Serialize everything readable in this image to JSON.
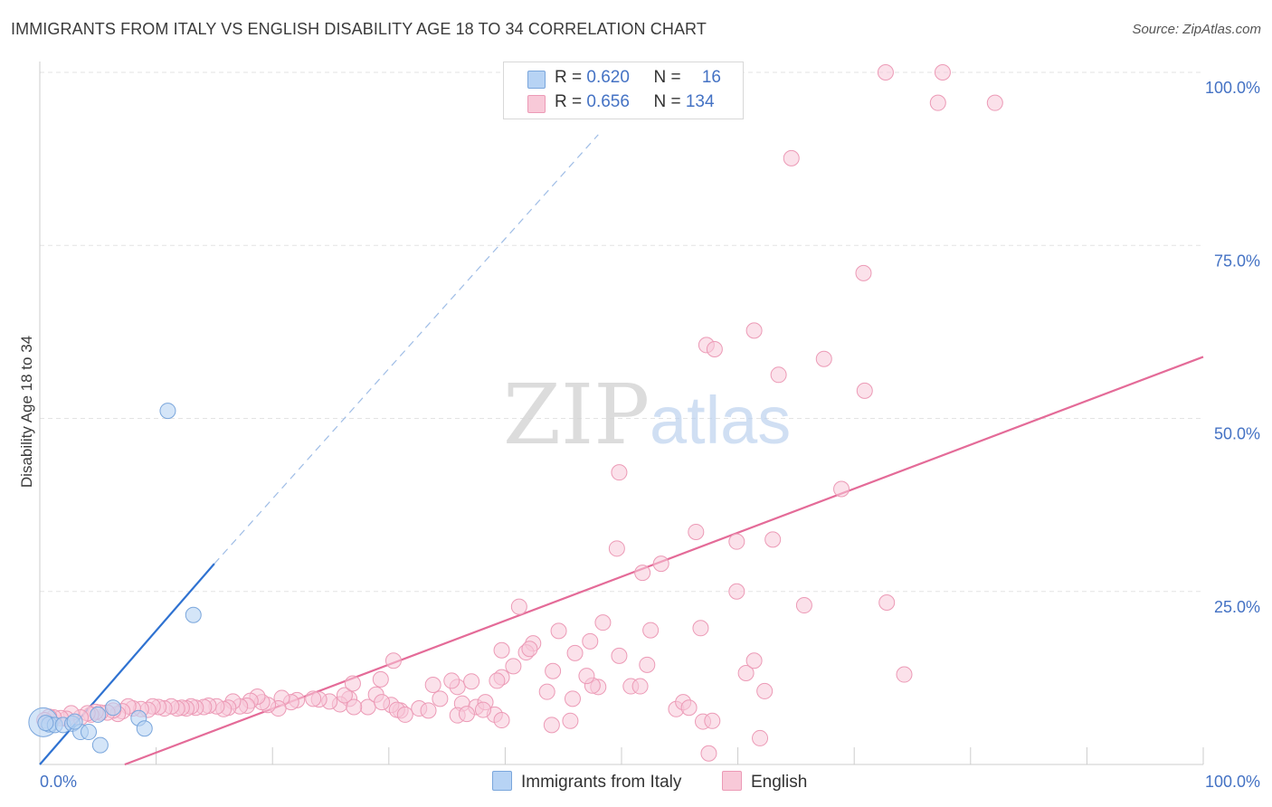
{
  "title": "IMMIGRANTS FROM ITALY VS ENGLISH DISABILITY AGE 18 TO 34 CORRELATION CHART",
  "source": "Source: ZipAtlas.com",
  "watermark": {
    "zip": "ZIP",
    "atlas": "atlas"
  },
  "legend": {
    "rows": [
      {
        "r_label": "R = ",
        "r_value": "0.620",
        "n_label": "N = ",
        "n_value": "16"
      },
      {
        "r_label": "R = ",
        "r_value": "0.656",
        "n_label": "N = ",
        "n_value": "134"
      }
    ]
  },
  "colors": {
    "italy_fill": "#b7d3f4",
    "italy_stroke": "#7aa6dc",
    "italy_line": "#2f72d1",
    "english_fill": "#f8c9d8",
    "english_stroke": "#ec9ab6",
    "english_line": "#e46b98",
    "axis_text": "#4472c4",
    "grid": "#e3e3e3"
  },
  "chart_data": {
    "type": "scatter",
    "title": "IMMIGRANTS FROM ITALY VS ENGLISH DISABILITY AGE 18 TO 34 CORRELATION CHART",
    "xlabel": "",
    "ylabel": "Disability Age 18 to 34",
    "xlim": [
      0,
      100
    ],
    "ylim": [
      0,
      100
    ],
    "x_tick_labels": [
      "0.0%",
      "100.0%"
    ],
    "y_tick_labels": [
      "25.0%",
      "50.0%",
      "75.0%",
      "100.0%"
    ],
    "grid": true,
    "legend_position": "top-center",
    "series": [
      {
        "name": "Immigrants from Italy",
        "r": 0.62,
        "n": 16,
        "trend": {
          "x": [
            0,
            15
          ],
          "y": [
            0,
            29
          ],
          "dashed_extension_to": [
            48,
            91
          ]
        },
        "points": [
          [
            0.3,
            6.1
          ],
          [
            0.8,
            5.8
          ],
          [
            1.3,
            5.7
          ],
          [
            2.0,
            5.7
          ],
          [
            2.8,
            5.9
          ],
          [
            3.5,
            4.7
          ],
          [
            4.2,
            4.7
          ],
          [
            5.0,
            7.2
          ],
          [
            5.2,
            2.8
          ],
          [
            6.3,
            8.2
          ],
          [
            8.5,
            6.7
          ],
          [
            9.0,
            5.2
          ],
          [
            11.0,
            51.1
          ],
          [
            13.2,
            21.6
          ],
          [
            0.5,
            6.0
          ],
          [
            3.0,
            6.2
          ]
        ]
      },
      {
        "name": "English",
        "r": 0.656,
        "n": 134,
        "trend": {
          "x": [
            7.3,
            100
          ],
          "y": [
            0,
            58.9
          ]
        },
        "points": [
          [
            72.7,
            100
          ],
          [
            77.6,
            100
          ],
          [
            77.2,
            95.6
          ],
          [
            82.1,
            95.6
          ],
          [
            64.6,
            87.6
          ],
          [
            70.8,
            71.0
          ],
          [
            57.3,
            60.6
          ],
          [
            58.0,
            60.0
          ],
          [
            61.4,
            62.7
          ],
          [
            63.5,
            56.3
          ],
          [
            67.4,
            58.6
          ],
          [
            70.9,
            54.0
          ],
          [
            49.8,
            42.2
          ],
          [
            68.9,
            39.8
          ],
          [
            56.4,
            33.6
          ],
          [
            49.6,
            31.2
          ],
          [
            59.9,
            32.2
          ],
          [
            63.0,
            32.5
          ],
          [
            51.8,
            27.7
          ],
          [
            53.4,
            29.0
          ],
          [
            59.9,
            25.0
          ],
          [
            65.7,
            23.0
          ],
          [
            72.8,
            23.4
          ],
          [
            41.2,
            22.8
          ],
          [
            48.4,
            20.5
          ],
          [
            44.6,
            19.3
          ],
          [
            52.5,
            19.4
          ],
          [
            56.8,
            19.7
          ],
          [
            42.4,
            17.5
          ],
          [
            47.3,
            17.8
          ],
          [
            39.7,
            16.5
          ],
          [
            41.8,
            16.2
          ],
          [
            42.1,
            16.7
          ],
          [
            46.0,
            16.1
          ],
          [
            49.8,
            15.7
          ],
          [
            52.2,
            14.4
          ],
          [
            60.7,
            13.2
          ],
          [
            61.4,
            15.0
          ],
          [
            40.7,
            14.2
          ],
          [
            39.7,
            12.6
          ],
          [
            35.9,
            11.2
          ],
          [
            33.8,
            11.5
          ],
          [
            35.4,
            12.1
          ],
          [
            37.1,
            12.0
          ],
          [
            39.3,
            12.1
          ],
          [
            43.6,
            10.5
          ],
          [
            45.8,
            9.5
          ],
          [
            48.0,
            11.2
          ],
          [
            50.8,
            11.3
          ],
          [
            51.6,
            11.3
          ],
          [
            47.5,
            11.4
          ],
          [
            62.3,
            10.6
          ],
          [
            54.7,
            8.0
          ],
          [
            55.3,
            9.0
          ],
          [
            55.8,
            8.2
          ],
          [
            74.3,
            13.0
          ],
          [
            34.4,
            9.5
          ],
          [
            36.3,
            8.8
          ],
          [
            37.5,
            8.3
          ],
          [
            38.3,
            9.0
          ],
          [
            39.1,
            7.2
          ],
          [
            39.7,
            6.4
          ],
          [
            45.6,
            6.3
          ],
          [
            44.0,
            5.7
          ],
          [
            31.0,
            7.8
          ],
          [
            32.6,
            8.1
          ],
          [
            33.4,
            7.8
          ],
          [
            30.2,
            8.6
          ],
          [
            28.2,
            8.3
          ],
          [
            28.9,
            10.1
          ],
          [
            29.4,
            9.0
          ],
          [
            26.6,
            9.5
          ],
          [
            25.8,
            8.7
          ],
          [
            26.2,
            10.0
          ],
          [
            27.0,
            8.3
          ],
          [
            24.9,
            9.1
          ],
          [
            24.0,
            9.4
          ],
          [
            23.5,
            9.5
          ],
          [
            22.1,
            9.3
          ],
          [
            21.6,
            9.0
          ],
          [
            20.8,
            9.6
          ],
          [
            20.5,
            8.1
          ],
          [
            19.6,
            8.6
          ],
          [
            19.1,
            9.0
          ],
          [
            18.7,
            9.8
          ],
          [
            18.1,
            9.2
          ],
          [
            17.8,
            8.5
          ],
          [
            17.2,
            8.4
          ],
          [
            16.6,
            9.1
          ],
          [
            16.2,
            8.2
          ],
          [
            15.8,
            8.0
          ],
          [
            15.2,
            8.4
          ],
          [
            14.5,
            8.5
          ],
          [
            14.1,
            8.3
          ],
          [
            13.4,
            8.2
          ],
          [
            13.0,
            8.4
          ],
          [
            12.6,
            8.1
          ],
          [
            12.2,
            8.2
          ],
          [
            11.8,
            8.1
          ],
          [
            11.3,
            8.4
          ],
          [
            10.7,
            8.1
          ],
          [
            10.2,
            8.3
          ],
          [
            9.7,
            8.4
          ],
          [
            9.3,
            7.9
          ],
          [
            8.7,
            8.0
          ],
          [
            8.0,
            8.1
          ],
          [
            7.6,
            8.4
          ],
          [
            7.1,
            7.7
          ],
          [
            6.7,
            7.3
          ],
          [
            6.3,
            7.8
          ],
          [
            5.8,
            7.5
          ],
          [
            5.2,
            7.5
          ],
          [
            4.8,
            7.6
          ],
          [
            4.4,
            7.2
          ],
          [
            4.1,
            7.4
          ],
          [
            3.5,
            6.8
          ],
          [
            2.7,
            7.4
          ],
          [
            2.3,
            6.6
          ],
          [
            1.8,
            6.7
          ],
          [
            1.2,
            6.8
          ],
          [
            0.8,
            6.9
          ],
          [
            0.4,
            6.4
          ],
          [
            30.7,
            7.9
          ],
          [
            31.4,
            7.2
          ],
          [
            35.9,
            7.1
          ],
          [
            36.7,
            7.3
          ],
          [
            38.1,
            7.9
          ],
          [
            29.3,
            12.3
          ],
          [
            26.9,
            11.7
          ],
          [
            30.4,
            15.0
          ],
          [
            44.1,
            13.5
          ],
          [
            47.0,
            12.8
          ],
          [
            57.0,
            6.2
          ],
          [
            57.8,
            6.3
          ],
          [
            57.5,
            1.6
          ],
          [
            61.9,
            3.8
          ]
        ]
      }
    ]
  }
}
